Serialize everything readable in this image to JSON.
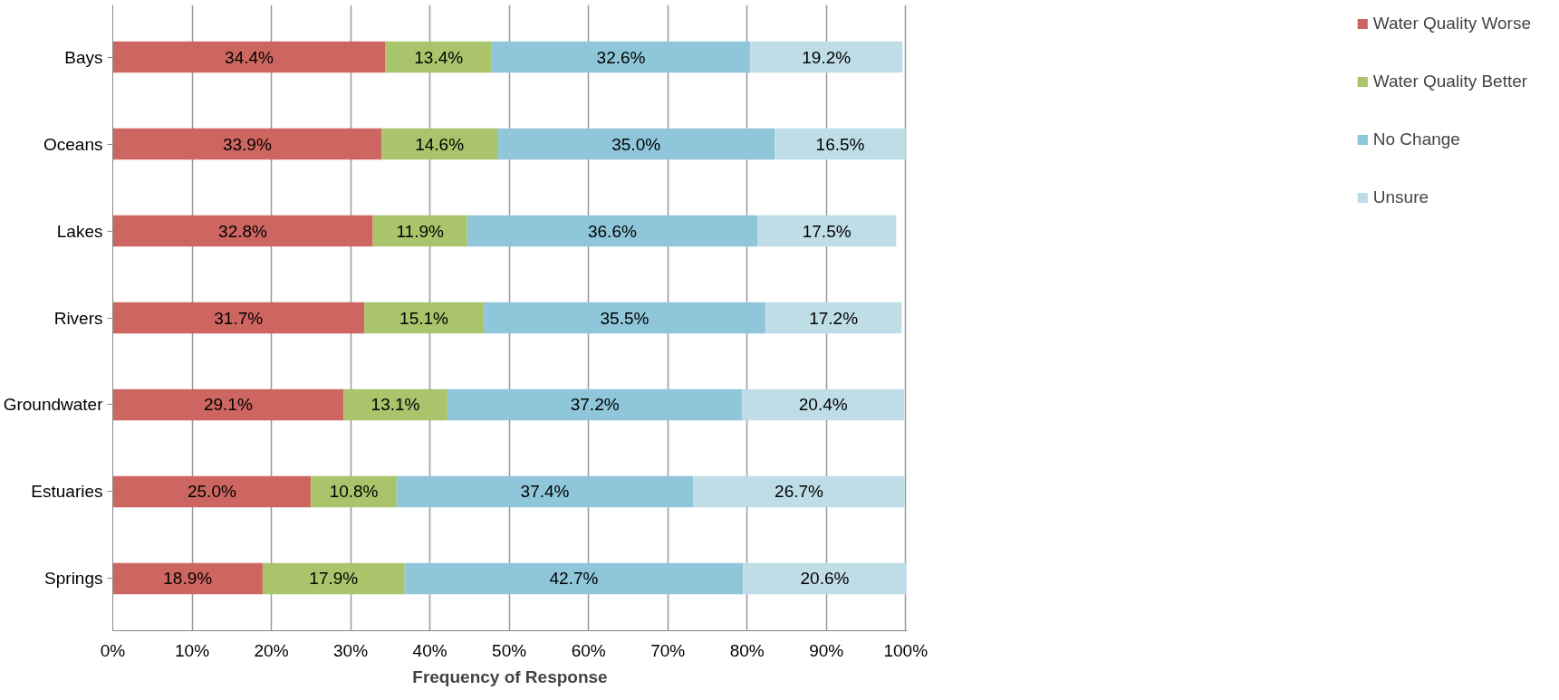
{
  "chart_data": {
    "type": "bar",
    "orientation": "horizontal",
    "stacked": true,
    "xlabel": "Frequency of Response",
    "categories": [
      "Bays",
      "Oceans",
      "Lakes",
      "Rivers",
      "Groundwater",
      "Estuaries",
      "Springs"
    ],
    "series": [
      {
        "name": "Water Quality Worse",
        "color": "#cd6660",
        "values": [
          34.4,
          33.9,
          32.8,
          31.7,
          29.1,
          25.0,
          18.9
        ],
        "value_labels": [
          "34.4%",
          "33.9%",
          "32.8%",
          "31.7%",
          "29.1%",
          "25.0%",
          "18.9%"
        ]
      },
      {
        "name": "Water Quality Better",
        "color": "#a9c46b",
        "values": [
          13.4,
          14.6,
          11.9,
          15.1,
          13.1,
          10.8,
          17.9
        ],
        "value_labels": [
          "13.4%",
          "14.6%",
          "11.9%",
          "15.1%",
          "13.1%",
          "10.8%",
          "17.9%"
        ]
      },
      {
        "name": "No Change",
        "color": "#8fc6d9",
        "values": [
          32.6,
          35.0,
          36.6,
          35.5,
          37.2,
          37.4,
          42.7
        ],
        "value_labels": [
          "32.6%",
          "35.0%",
          "36.6%",
          "35.5%",
          "37.2%",
          "37.4%",
          "42.7%"
        ]
      },
      {
        "name": "Unsure",
        "color": "#bfdde6",
        "values": [
          19.2,
          16.5,
          17.5,
          17.2,
          20.4,
          26.7,
          20.6
        ],
        "value_labels": [
          "19.2%",
          "16.5%",
          "17.5%",
          "17.2%",
          "20.4%",
          "26.7%",
          "20.6%"
        ]
      }
    ],
    "xlim": [
      0,
      100.2
    ],
    "xticks": [
      {
        "value": 0,
        "label": "0%"
      },
      {
        "value": 10,
        "label": "10%"
      },
      {
        "value": 20,
        "label": "20%"
      },
      {
        "value": 30,
        "label": "30%"
      },
      {
        "value": 40,
        "label": "40%"
      },
      {
        "value": 50,
        "label": "50%"
      },
      {
        "value": 60,
        "label": "60%"
      },
      {
        "value": 70,
        "label": "70%"
      },
      {
        "value": 80,
        "label": "80%"
      },
      {
        "value": 90,
        "label": "90%"
      },
      {
        "value": 100,
        "label": "100%"
      }
    ],
    "grid": "x",
    "legend": "right"
  }
}
